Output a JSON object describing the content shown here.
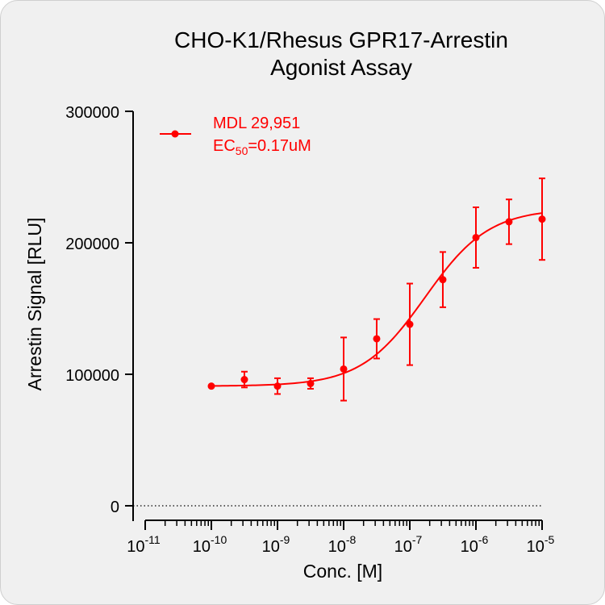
{
  "chart_data": {
    "type": "scatter",
    "title_line1": "CHO-K1/Rhesus GPR17-Arrestin",
    "title_line2": "Agonist Assay",
    "xlabel": "Conc. [M]",
    "ylabel": "Arrestin Signal [RLU]",
    "x_scale": "log",
    "xlim": [
      1e-11,
      1e-05
    ],
    "ylim": [
      0,
      300000
    ],
    "x_tick_exponents": [
      "-11",
      "-10",
      "-9",
      "-8",
      "-7",
      "-6",
      "-5"
    ],
    "y_ticks": [
      "0",
      "100000",
      "200000",
      "300000"
    ],
    "grid": false,
    "legend_position": "top-left",
    "series_color": "#ff0000",
    "series": [
      {
        "name": "MDL 29,951",
        "ec50_prefix": "EC",
        "ec50_sub": "50",
        "ec50_suffix": "=0.17uM",
        "x": [
          1e-10,
          3.16e-10,
          1e-09,
          3.16e-09,
          1e-08,
          3.16e-08,
          1e-07,
          3.16e-07,
          1e-06,
          3.16e-06,
          1e-05
        ],
        "y": [
          91000,
          96000,
          91000,
          93000,
          104000,
          127000,
          138000,
          172000,
          204000,
          216000,
          218000
        ],
        "error": [
          0,
          6000,
          6000,
          4000,
          24000,
          15000,
          31000,
          21000,
          23000,
          17000,
          31000
        ],
        "fit": {
          "model": "four-parameter logistic",
          "bottom": 91000,
          "top": 226000,
          "ec50": 1.7e-07,
          "hill": 0.9
        }
      }
    ]
  }
}
